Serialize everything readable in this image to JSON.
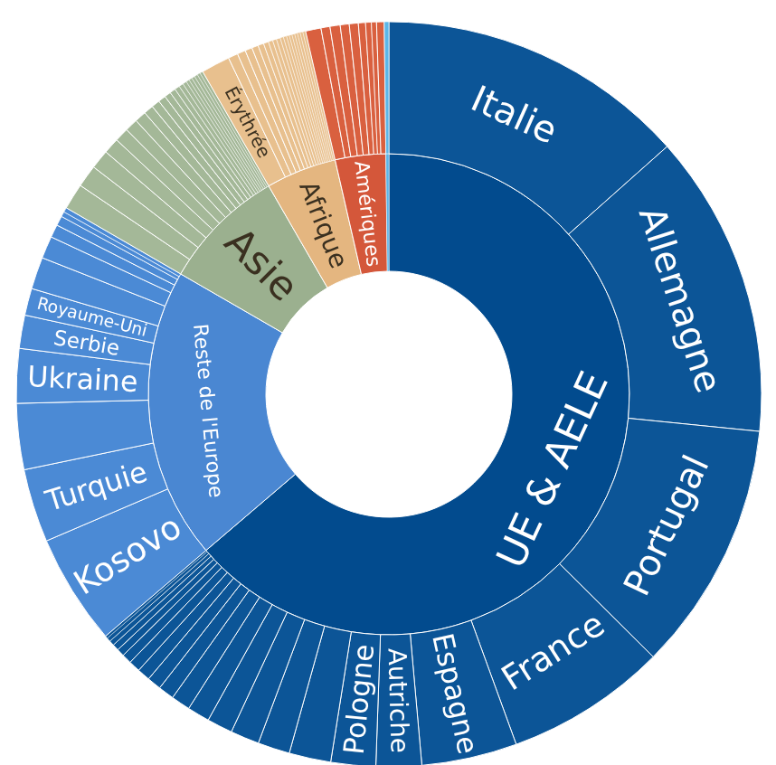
{
  "chart_data": [
    {
      "type": "donut",
      "categories": [
        "UE & AELE",
        "Reste de l'Europe",
        "Asie",
        "Afrique",
        "Amériques",
        null
      ],
      "values": [
        63.75,
        19.59,
        8.33,
        4.74,
        3.39,
        0.2
      ],
      "colors": [
        "#024b8e",
        "#4a87d2",
        "#9bb08f",
        "#e4b680",
        "#d4573a",
        "#5cb6e8"
      ]
    },
    {
      "type": "donut",
      "categories": [
        "Italie",
        "Allemagne",
        "Portugal",
        "France",
        "Espagne",
        "Autriche",
        "Pologne",
        null,
        null,
        null,
        null,
        null,
        null,
        null,
        null,
        null,
        null,
        null,
        null,
        null,
        null,
        null,
        null,
        "Kosovo",
        "Turquie",
        null,
        "Ukraine",
        "Serbie",
        "Royaume-Uni",
        null,
        null,
        null,
        null,
        null,
        null,
        null,
        null,
        null,
        null,
        null,
        null,
        null,
        null,
        null,
        null,
        null,
        null,
        null,
        null,
        null,
        null,
        null,
        null,
        null,
        null,
        null,
        "Érythrée",
        null,
        null,
        null,
        null,
        null,
        null,
        null,
        null,
        null,
        null,
        null,
        null,
        null,
        null,
        null,
        null,
        null,
        null,
        null,
        null,
        null,
        null,
        null,
        null,
        null,
        null,
        null,
        null
      ],
      "values": [
        13.42,
        13.17,
        10.86,
        7.0,
        4.14,
        1.97,
        1.94,
        1.81,
        1.39,
        1.25,
        1.11,
        0.97,
        0.83,
        0.69,
        0.61,
        0.56,
        0.5,
        0.42,
        0.33,
        0.28,
        0.22,
        0.17,
        0.11,
        4.81,
        3.19,
        2.86,
        2.36,
        1.44,
        1.17,
        1.39,
        0.97,
        0.56,
        0.42,
        0.22,
        0.2,
        1.13,
        0.97,
        0.83,
        0.69,
        0.61,
        0.56,
        0.5,
        0.42,
        0.36,
        0.33,
        0.28,
        0.25,
        0.22,
        0.19,
        0.17,
        0.14,
        0.14,
        0.14,
        0.14,
        0.13,
        0.13,
        1.25,
        0.42,
        0.36,
        0.31,
        0.28,
        0.25,
        0.22,
        0.19,
        0.17,
        0.17,
        0.14,
        0.14,
        0.12,
        0.12,
        0.12,
        0.12,
        0.12,
        0.12,
        0.12,
        0.67,
        0.39,
        0.44,
        0.39,
        0.39,
        0.31,
        0.25,
        0.22,
        0.33,
        0.2
      ],
      "colors": [
        "#0c5597",
        "#0c5597",
        "#0c5597",
        "#0c5597",
        "#0c5597",
        "#0c5597",
        "#0c5597",
        "#0c5597",
        "#0c5597",
        "#0c5597",
        "#0c5597",
        "#0c5597",
        "#0c5597",
        "#0c5597",
        "#0c5597",
        "#0c5597",
        "#0c5597",
        "#0c5597",
        "#0c5597",
        "#0c5597",
        "#0c5597",
        "#0c5597",
        "#0c5597",
        "#4b8ad5",
        "#4b8ad5",
        "#4b8ad5",
        "#4b8ad5",
        "#4b8ad5",
        "#4b8ad5",
        "#4b8ad5",
        "#4b8ad5",
        "#4b8ad5",
        "#4b8ad5",
        "#4b8ad5",
        "#4b8ad5",
        "#a4b898",
        "#a4b898",
        "#a4b898",
        "#a4b898",
        "#a4b898",
        "#a4b898",
        "#a4b898",
        "#a4b898",
        "#a4b898",
        "#a4b898",
        "#a4b898",
        "#a4b898",
        "#a4b898",
        "#a4b898",
        "#a4b898",
        "#a4b898",
        "#a4b898",
        "#a4b898",
        "#a4b898",
        "#a4b898",
        "#a4b898",
        "#e8c08e",
        "#e8c08e",
        "#e8c08e",
        "#e8c08e",
        "#e8c08e",
        "#e8c08e",
        "#e8c08e",
        "#e8c08e",
        "#e8c08e",
        "#e8c08e",
        "#e8c08e",
        "#e8c08e",
        "#e8c08e",
        "#e8c08e",
        "#e8c08e",
        "#e8c08e",
        "#e8c08e",
        "#e8c08e",
        "#e8c08e",
        "#d9603f",
        "#d9603f",
        "#d9603f",
        "#d9603f",
        "#d9603f",
        "#d9603f",
        "#d9603f",
        "#d9603f",
        "#d9603f",
        "#5cb6e8"
      ]
    }
  ]
}
